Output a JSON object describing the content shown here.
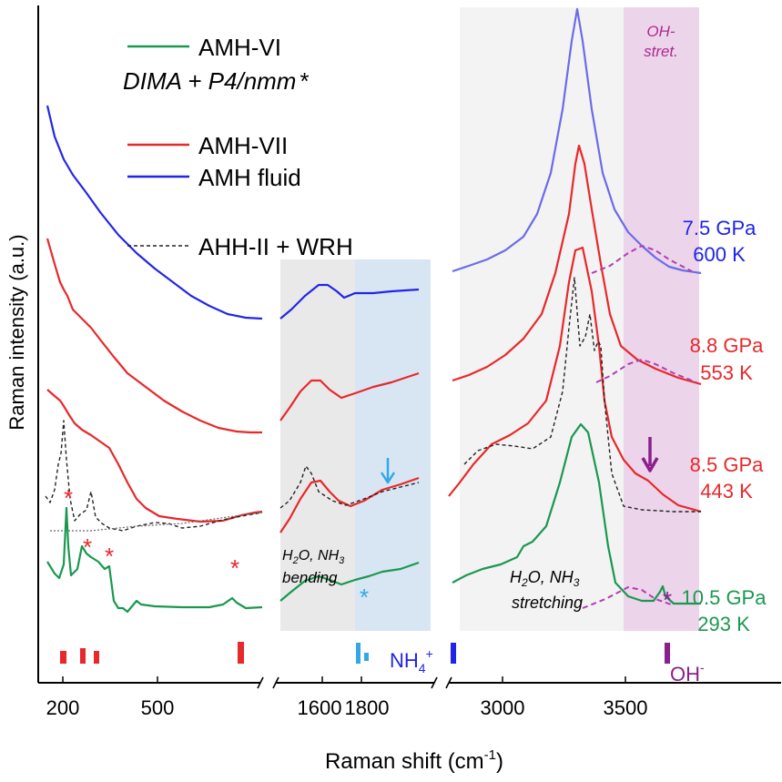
{
  "chart_data": {
    "type": "line",
    "xlabel_prefix": "Raman shift (cm",
    "xlabel_sup": "-1",
    "xlabel_suffix": ")",
    "ylabel": "Raman intensity (a.u.)",
    "x_ticks": [
      "200",
      "500",
      "1600",
      "1800",
      "3000",
      "3500"
    ],
    "legend": [
      {
        "name": "AMH-VI",
        "color": "#1a9850",
        "style": "solid",
        "sub": "DIMA + P4/nmm"
      },
      {
        "name": "AMH-VII",
        "color": "#e8282b",
        "style": "solid"
      },
      {
        "name": "AMH fluid",
        "color": "#1f24e8",
        "style": "solid"
      },
      {
        "name": "AHH-II + WRH",
        "color": "#222222",
        "style": "dashed"
      }
    ],
    "asterisk": "*",
    "conditions": [
      {
        "pressure": "7.5 GPa",
        "temperature": "600 K",
        "color": "#1f24e8"
      },
      {
        "pressure": "8.8 GPa",
        "temperature": "553 K",
        "color": "#e8282b"
      },
      {
        "pressure": "8.5 GPa",
        "temperature": "443 K",
        "color": "#e8282b"
      },
      {
        "pressure": "10.5 GPa",
        "temperature": "293 K",
        "color": "#1a9850"
      }
    ],
    "annotations": {
      "oh_stretch_1": "OH-",
      "oh_stretch_2": "stret.",
      "bending_1": "H",
      "bending_2": "bending",
      "stretching_2": "stretching",
      "nh4": "NH",
      "nh4_sup": "+",
      "nh4_sub": "4",
      "oh": "OH",
      "oh_sup": "-"
    },
    "panels": [
      {
        "name": "low",
        "xlim": [
          150,
          1000
        ]
      },
      {
        "name": "bending",
        "xlim": [
          1450,
          2200
        ]
      },
      {
        "name": "stretching",
        "xlim": [
          2550,
          4200
        ]
      }
    ],
    "shaded_regions": [
      {
        "panel": "bending",
        "from": 1450,
        "to": 1800,
        "color": "#e8e8e8"
      },
      {
        "panel": "bending",
        "from": 1800,
        "to": 2200,
        "color": "#d9e6f2"
      },
      {
        "panel": "stretching",
        "from": 2600,
        "to": 3500,
        "color": "#f2f2f2"
      },
      {
        "panel": "stretching",
        "from": 3500,
        "to": 3850,
        "color": "#ecd3ea"
      }
    ]
  }
}
